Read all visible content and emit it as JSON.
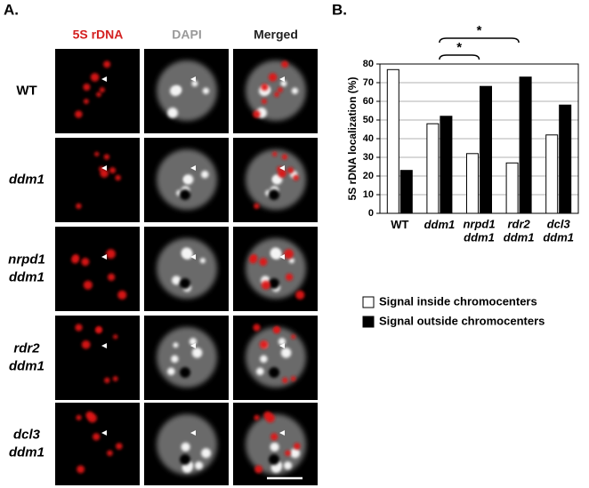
{
  "panel_a": {
    "label": "A.",
    "columns": [
      "5S rDNA",
      "DAPI",
      "Merged"
    ],
    "rows": [
      [
        "WT"
      ],
      [
        "ddm1"
      ],
      [
        "nrpd1",
        "ddm1"
      ],
      [
        "rdr2",
        "ddm1"
      ],
      [
        "dcl3",
        "ddm1"
      ]
    ]
  },
  "chart_data": {
    "type": "bar",
    "panel_label": "B.",
    "y_label": "5S rDNA localization (%)",
    "categories": [
      [
        "WT"
      ],
      [
        "ddm1"
      ],
      [
        "nrpd1",
        "ddm1"
      ],
      [
        "rdr2",
        "ddm1"
      ],
      [
        "dcl3",
        "ddm1"
      ]
    ],
    "series": [
      {
        "name": "Signal inside chromocenters",
        "color": "#ffffff",
        "values": [
          77,
          48,
          32,
          27,
          42
        ]
      },
      {
        "name": "Signal outside chromocenters",
        "color": "#000000",
        "values": [
          23,
          52,
          68,
          73,
          58
        ]
      }
    ],
    "ylim": [
      0,
      80
    ],
    "yticks": [
      0,
      10,
      20,
      30,
      40,
      50,
      60,
      70,
      80
    ],
    "grid": true,
    "annotations": [
      "*",
      "*"
    ]
  }
}
